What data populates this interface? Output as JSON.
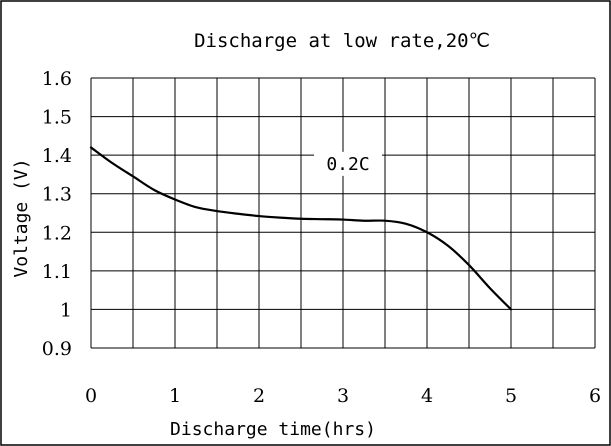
{
  "chart_data": {
    "type": "line",
    "title": "Discharge at low rate,20℃",
    "xlabel": "Discharge time(hrs)",
    "ylabel": "Voltage (V)",
    "xlim": [
      0,
      6
    ],
    "ylim": [
      0.9,
      1.6
    ],
    "x_ticks": [
      0,
      1,
      2,
      3,
      4,
      5,
      6
    ],
    "x_tick_labels": [
      "0",
      "1",
      "2",
      "3",
      "4",
      "5",
      "6"
    ],
    "y_ticks": [
      0.9,
      1.0,
      1.1,
      1.2,
      1.3,
      1.4,
      1.5,
      1.6
    ],
    "y_tick_labels": [
      "0.9",
      "1",
      "1.1",
      "1.2",
      "1.3",
      "1.4",
      "1.5",
      "1.6"
    ],
    "grid": true,
    "x_minor_grid_step": 0.5,
    "series": [
      {
        "name": "0.2C",
        "color": "#000000",
        "x": [
          0,
          0.25,
          0.5,
          0.75,
          1.0,
          1.25,
          1.5,
          1.75,
          2.0,
          2.25,
          2.5,
          2.75,
          3.0,
          3.25,
          3.5,
          3.75,
          4.0,
          4.25,
          4.5,
          4.75,
          5.0
        ],
        "y": [
          1.42,
          1.38,
          1.345,
          1.31,
          1.285,
          1.265,
          1.255,
          1.248,
          1.242,
          1.238,
          1.235,
          1.234,
          1.233,
          1.23,
          1.23,
          1.222,
          1.2,
          1.165,
          1.115,
          1.055,
          1.0
        ]
      }
    ],
    "annotations": [
      {
        "text": "0.2C",
        "x": 2.5,
        "y": 1.38
      }
    ]
  }
}
